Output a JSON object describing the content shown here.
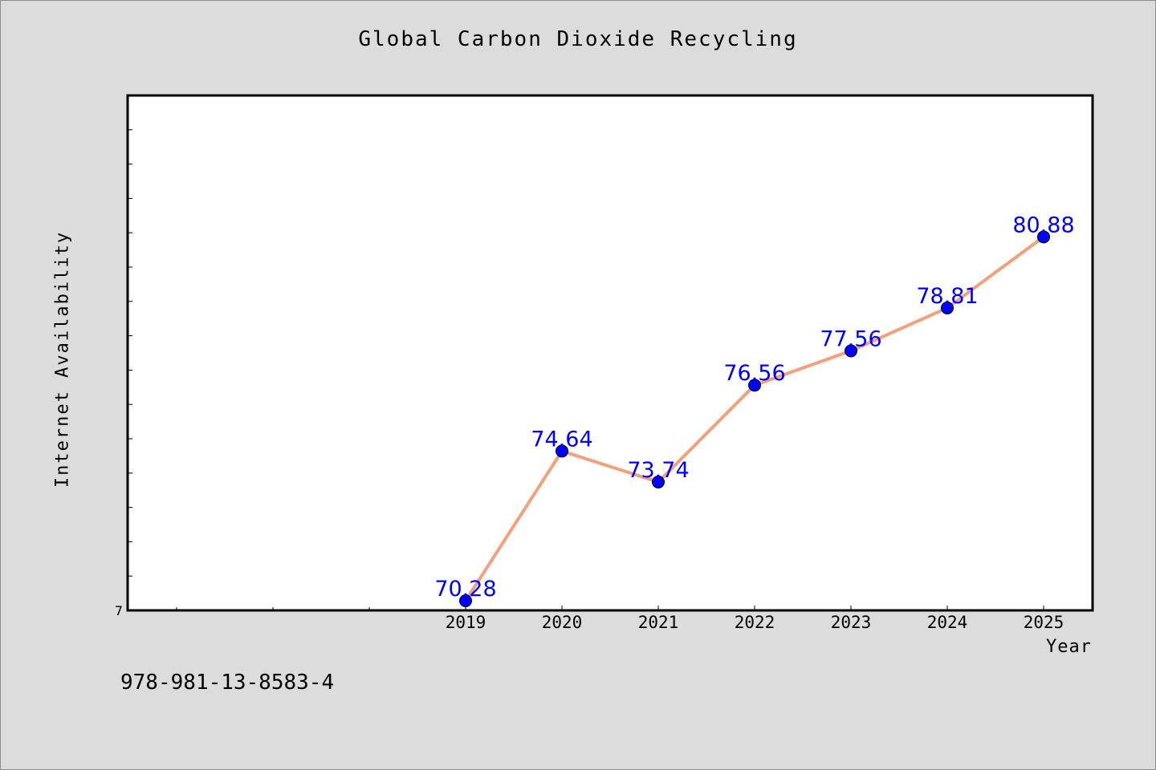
{
  "colors": {
    "background": "#dcdcdc",
    "plot_background": "#ffffff",
    "line": "#f4a07a",
    "marker": "#0000ff",
    "data_label": "#0000ff"
  },
  "footer": {
    "code": "978-981-13-8583-4"
  },
  "chart_data": {
    "type": "line",
    "title": "Global Carbon Dioxide Recycling",
    "xlabel": "Year",
    "ylabel": "Internet Availability",
    "categories": [
      "2019",
      "2020",
      "2021",
      "2022",
      "2023",
      "2024",
      "2025"
    ],
    "series": [
      {
        "values": [
          70.28,
          74.64,
          73.74,
          76.56,
          77.56,
          78.81,
          80.88
        ]
      }
    ],
    "data_labels": [
      "70.28",
      "74.64",
      "73.74",
      "76.56",
      "77.56",
      "78.81",
      "80.88"
    ],
    "y_tick_labels": [
      "7"
    ],
    "ylim": [
      70.0,
      85.0
    ],
    "grid": false,
    "legend": "none"
  }
}
